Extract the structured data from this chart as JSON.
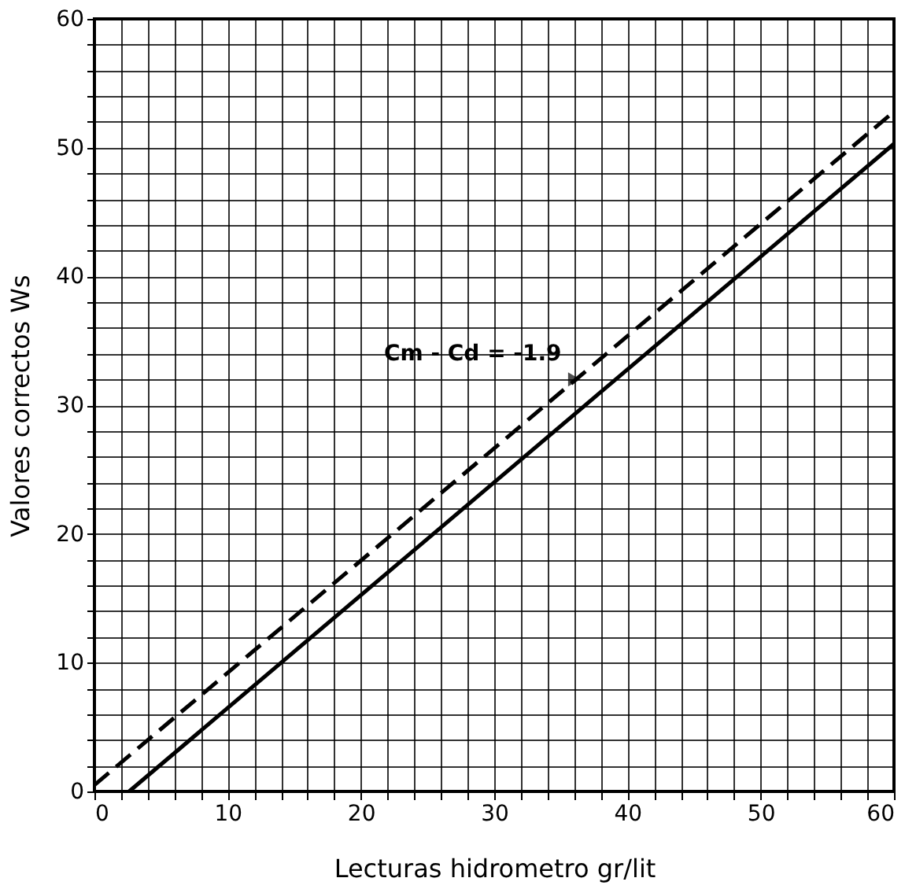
{
  "chart_data": {
    "type": "line",
    "xlabel": "Lecturas hidrometro gr/lit",
    "ylabel": "Valores correctos Ws",
    "xlim": [
      0,
      60
    ],
    "ylim": [
      0,
      60
    ],
    "xticks": [
      0,
      {
        "value": 2,
        "label": null
      },
      {
        "value": 4,
        "label": null
      },
      {
        "value": 6,
        "label": null
      },
      {
        "value": 8,
        "label": null
      },
      10,
      {
        "value": 12,
        "label": null
      },
      {
        "value": 14,
        "label": null
      },
      {
        "value": 16,
        "label": null
      },
      {
        "value": 18,
        "label": null
      },
      20,
      {
        "value": 22,
        "label": null
      },
      {
        "value": 24,
        "label": null
      },
      {
        "value": 26,
        "label": null
      },
      {
        "value": 28,
        "label": null
      },
      30,
      {
        "value": 32,
        "label": null
      },
      {
        "value": 34,
        "label": null
      },
      {
        "value": 36,
        "label": null
      },
      {
        "value": 38,
        "label": null
      },
      40,
      {
        "value": 42,
        "label": null
      },
      {
        "value": 44,
        "label": null
      },
      {
        "value": 46,
        "label": null
      },
      {
        "value": 48,
        "label": null
      },
      50,
      {
        "value": 52,
        "label": null
      },
      {
        "value": 54,
        "label": null
      },
      {
        "value": 56,
        "label": null
      },
      {
        "value": 58,
        "label": null
      },
      60
    ],
    "yticks": [
      0,
      {
        "value": 2,
        "label": null
      },
      {
        "value": 4,
        "label": null
      },
      {
        "value": 6,
        "label": null
      },
      {
        "value": 8,
        "label": null
      },
      10,
      {
        "value": 12,
        "label": null
      },
      {
        "value": 14,
        "label": null
      },
      {
        "value": 16,
        "label": null
      },
      {
        "value": 18,
        "label": null
      },
      20,
      {
        "value": 22,
        "label": null
      },
      {
        "value": 24,
        "label": null
      },
      {
        "value": 26,
        "label": null
      },
      {
        "value": 28,
        "label": null
      },
      30,
      {
        "value": 32,
        "label": null
      },
      {
        "value": 34,
        "label": null
      },
      {
        "value": 36,
        "label": null
      },
      {
        "value": 38,
        "label": null
      },
      40,
      {
        "value": 42,
        "label": null
      },
      {
        "value": 44,
        "label": null
      },
      {
        "value": 46,
        "label": null
      },
      {
        "value": 48,
        "label": null
      },
      50,
      {
        "value": 52,
        "label": null
      },
      {
        "value": 54,
        "label": null
      },
      {
        "value": 56,
        "label": null
      },
      {
        "value": 58,
        "label": null
      },
      60
    ],
    "grid": true,
    "marker": "none",
    "series": [
      {
        "color": "#000000",
        "line_style": "solid",
        "x": [
          2.6,
          60
        ],
        "values": [
          0,
          50.3
        ]
      },
      {
        "color": "#000000",
        "line_style": "dashed",
        "x": [
          0,
          60
        ],
        "values": [
          0.5,
          52.8
        ]
      }
    ],
    "annotations": [
      {
        "text": "Cm - Cd = -1.9",
        "x": 36,
        "y": 32
      }
    ]
  }
}
